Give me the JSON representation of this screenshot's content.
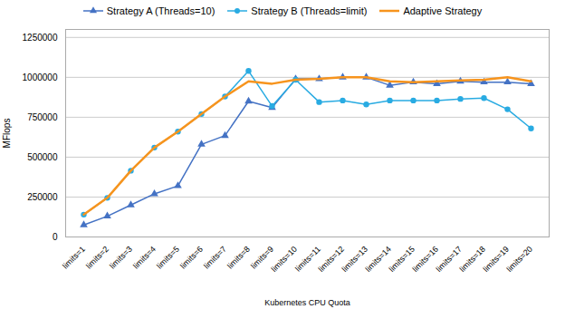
{
  "chart_data": {
    "type": "line",
    "xlabel": "Kubernetes CPU Quota",
    "ylabel": "MFlops",
    "categories": [
      "limits=1",
      "limits=2",
      "limits=3",
      "limits=4",
      "limits=5",
      "limits=6",
      "limits=7",
      "limits=8",
      "limits=9",
      "limits=10",
      "limits=11",
      "limits=12",
      "limits=13",
      "limits=14",
      "limits=15",
      "limits=16",
      "limits=17",
      "limits=18",
      "limits=19",
      "limits=20"
    ],
    "series": [
      {
        "name": "Strategy A (Threads=10)",
        "color": "#4472c4",
        "marker": "triangle",
        "values": [
          75000,
          130000,
          200000,
          270000,
          320000,
          580000,
          635000,
          850000,
          810000,
          990000,
          990000,
          1000000,
          1000000,
          950000,
          970000,
          960000,
          975000,
          970000,
          970000,
          960000
        ]
      },
      {
        "name": "Strategy B (Threads=limit)",
        "color": "#29abe2",
        "marker": "circle",
        "values": [
          140000,
          245000,
          415000,
          560000,
          660000,
          770000,
          880000,
          1040000,
          820000,
          985000,
          845000,
          855000,
          830000,
          855000,
          855000,
          855000,
          865000,
          870000,
          800000,
          680000
        ]
      },
      {
        "name": "Adaptive Strategy",
        "color": "#f7941d",
        "marker": "none",
        "values": [
          140000,
          245000,
          415000,
          560000,
          660000,
          770000,
          880000,
          975000,
          960000,
          985000,
          990000,
          1000000,
          1000000,
          975000,
          970000,
          975000,
          980000,
          985000,
          1000000,
          975000
        ]
      }
    ],
    "ylim": [
      0,
      1300000
    ],
    "yticks": [
      0,
      250000,
      500000,
      750000,
      1000000,
      1250000
    ],
    "grid": true,
    "legend": "top"
  }
}
